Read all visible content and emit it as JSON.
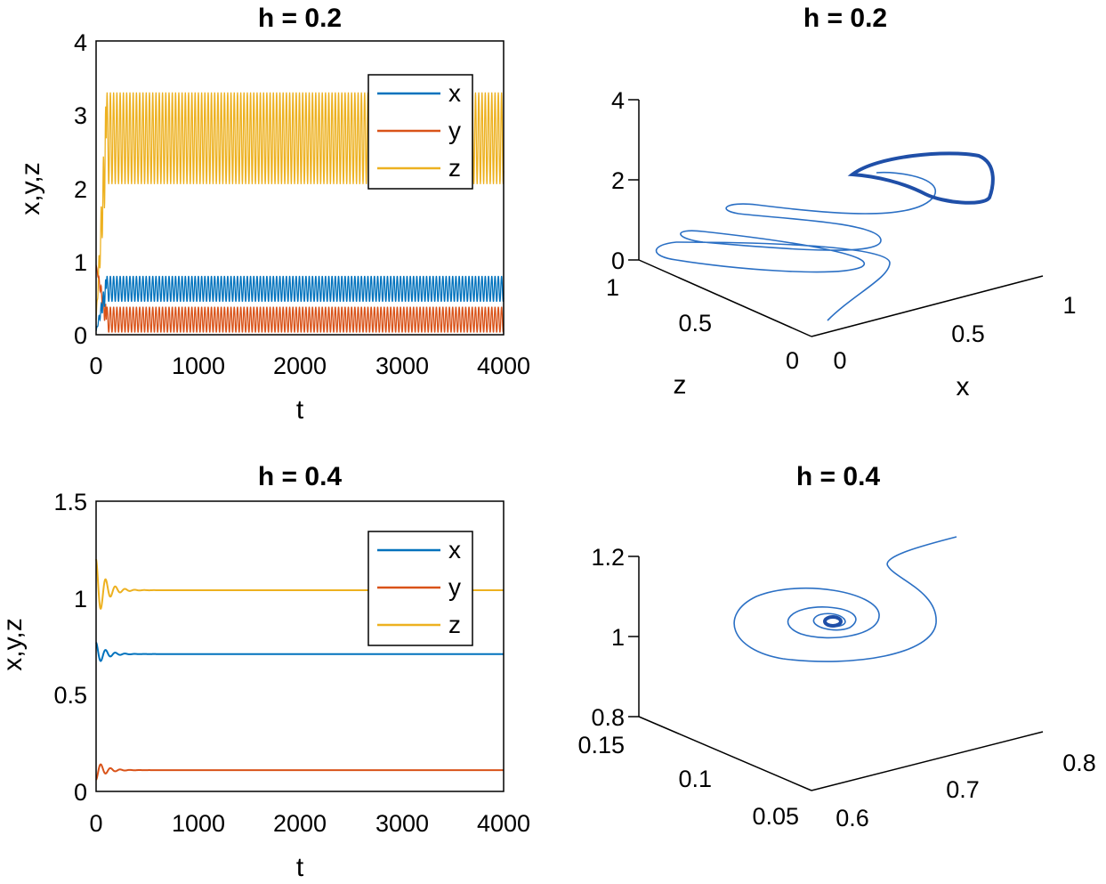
{
  "colors": {
    "x": "#0072BD",
    "y": "#D95319",
    "z": "#EDB120",
    "traj": "#2A5DB0"
  },
  "chart_data": [
    {
      "type": "line",
      "title": "h = 0.2",
      "xlabel": "t",
      "ylabel": "x,y,z",
      "xlim": [
        0,
        4000
      ],
      "ylim": [
        0,
        4
      ],
      "xticks": [
        "0",
        "1000",
        "2000",
        "3000",
        "4000"
      ],
      "yticks": [
        "0",
        "1",
        "2",
        "3",
        "4"
      ],
      "legend": [
        "x",
        "y",
        "z"
      ],
      "legend_position": "top-right",
      "series": [
        {
          "name": "x",
          "behavior": "periodic oscillation",
          "initial": 0.05,
          "min": 0.45,
          "max": 0.8
        },
        {
          "name": "y",
          "behavior": "periodic oscillation",
          "initial": 0.95,
          "min": 0.03,
          "max": 0.38
        },
        {
          "name": "z",
          "behavior": "periodic oscillation",
          "initial": 0.2,
          "min": 2.05,
          "max": 3.3
        }
      ]
    },
    {
      "type": "line3d",
      "title": "h = 0.2",
      "xlabel": "x",
      "ylabel": "z",
      "zlabel": "",
      "xticks": [
        "0",
        "0.5",
        "1"
      ],
      "yticks": [
        "0",
        "0.5",
        "1"
      ],
      "zticks": [
        "0",
        "2",
        "4"
      ],
      "description": "trajectory spiralling outward to a limit cycle"
    },
    {
      "type": "line",
      "title": "h = 0.4",
      "xlabel": "t",
      "ylabel": "x,y,z",
      "xlim": [
        0,
        4000
      ],
      "ylim": [
        0,
        1.5
      ],
      "xticks": [
        "0",
        "1000",
        "2000",
        "3000",
        "4000"
      ],
      "yticks": [
        "0",
        "0.5",
        "1",
        "1.5"
      ],
      "legend": [
        "x",
        "y",
        "z"
      ],
      "legend_position": "top-right",
      "series": [
        {
          "name": "x",
          "behavior": "damped oscillation",
          "initial": 0.77,
          "steady": 0.71
        },
        {
          "name": "y",
          "behavior": "damped oscillation",
          "initial": 0.06,
          "steady": 0.11
        },
        {
          "name": "z",
          "behavior": "damped oscillation",
          "initial": 1.2,
          "steady": 1.04
        }
      ]
    },
    {
      "type": "line3d",
      "title": "h = 0.4",
      "xlabel": "",
      "ylabel": "",
      "zlabel": "",
      "xticks": [
        "0.6",
        "0.7",
        "0.8"
      ],
      "yticks": [
        "0.05",
        "0.1",
        "0.15"
      ],
      "zticks": [
        "0.8",
        "1",
        "1.2"
      ],
      "description": "trajectory spiralling inward to a stable equilibrium"
    }
  ]
}
